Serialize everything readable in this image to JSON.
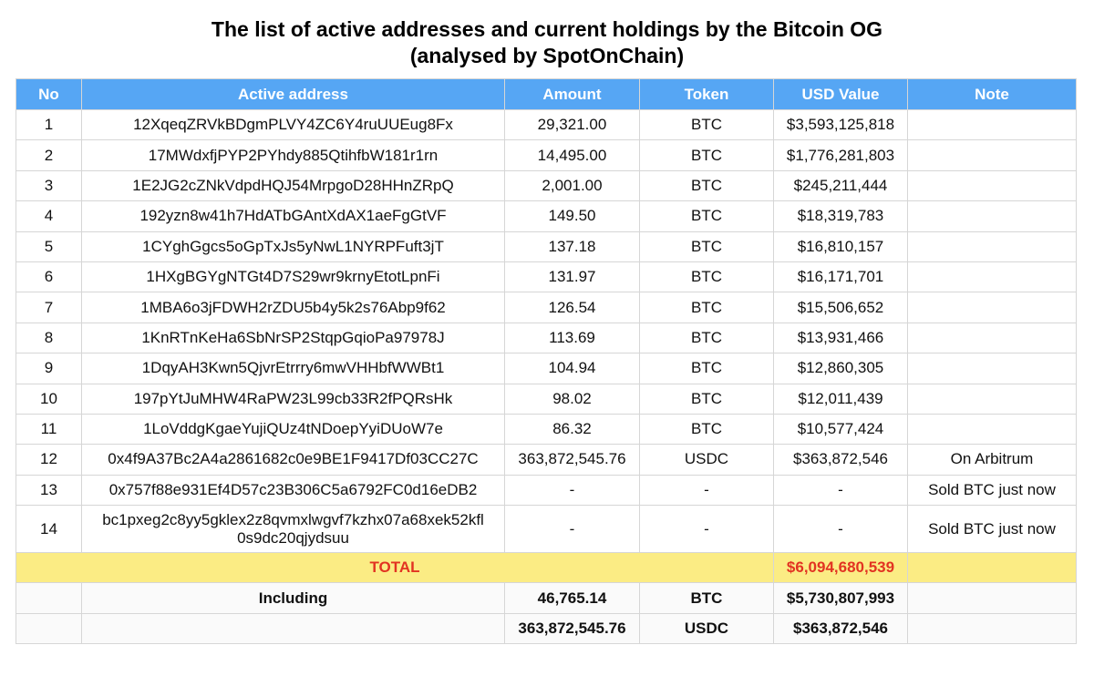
{
  "title": {
    "line1": "The list of active addresses and current holdings by the Bitcoin OG",
    "line2": "(analysed by SpotOnChain)"
  },
  "colors": {
    "header_bg": "#56a6f4",
    "header_text": "#ffffff",
    "total_bg": "#fbec84",
    "total_text": "#e23322"
  },
  "table": {
    "headers": {
      "no": "No",
      "address": "Active address",
      "amount": "Amount",
      "token": "Token",
      "usd": "USD Value",
      "note": "Note"
    },
    "rows": [
      {
        "no": "1",
        "address": "12XqeqZRVkBDgmPLVY4ZC6Y4ruUUEug8Fx",
        "amount": "29,321.00",
        "token": "BTC",
        "usd": "$3,593,125,818",
        "note": ""
      },
      {
        "no": "2",
        "address": "17MWdxfjPYP2PYhdy885QtihfbW181r1rn",
        "amount": "14,495.00",
        "token": "BTC",
        "usd": "$1,776,281,803",
        "note": ""
      },
      {
        "no": "3",
        "address": "1E2JG2cZNkVdpdHQJ54MrpgoD28HHnZRpQ",
        "amount": "2,001.00",
        "token": "BTC",
        "usd": "$245,211,444",
        "note": ""
      },
      {
        "no": "4",
        "address": "192yzn8w41h7HdATbGAntXdAX1aeFgGtVF",
        "amount": "149.50",
        "token": "BTC",
        "usd": "$18,319,783",
        "note": ""
      },
      {
        "no": "5",
        "address": "1CYghGgcs5oGpTxJs5yNwL1NYRPFuft3jT",
        "amount": "137.18",
        "token": "BTC",
        "usd": "$16,810,157",
        "note": ""
      },
      {
        "no": "6",
        "address": "1HXgBGYgNTGt4D7S29wr9krnyEtotLpnFi",
        "amount": "131.97",
        "token": "BTC",
        "usd": "$16,171,701",
        "note": ""
      },
      {
        "no": "7",
        "address": "1MBA6o3jFDWH2rZDU5b4y5k2s76Abp9f62",
        "amount": "126.54",
        "token": "BTC",
        "usd": "$15,506,652",
        "note": ""
      },
      {
        "no": "8",
        "address": "1KnRTnKeHa6SbNrSP2StqpGqioPa97978J",
        "amount": "113.69",
        "token": "BTC",
        "usd": "$13,931,466",
        "note": ""
      },
      {
        "no": "9",
        "address": "1DqyAH3Kwn5QjvrEtrrry6mwVHHbfWWBt1",
        "amount": "104.94",
        "token": "BTC",
        "usd": "$12,860,305",
        "note": ""
      },
      {
        "no": "10",
        "address": "197pYtJuMHW4RaPW23L99cb33R2fPQRsHk",
        "amount": "98.02",
        "token": "BTC",
        "usd": "$12,011,439",
        "note": ""
      },
      {
        "no": "11",
        "address": "1LoVddgKgaeYujiQUz4tNDoepYyiDUoW7e",
        "amount": "86.32",
        "token": "BTC",
        "usd": "$10,577,424",
        "note": ""
      },
      {
        "no": "12",
        "address": "0x4f9A37Bc2A4a2861682c0e9BE1F9417Df03CC27C",
        "amount": "363,872,545.76",
        "token": "USDC",
        "usd": "$363,872,546",
        "note": "On Arbitrum"
      },
      {
        "no": "13",
        "address": "0x757f88e931Ef4D57c23B306C5a6792FC0d16eDB2",
        "amount": "-",
        "token": "-",
        "usd": "-",
        "note": "Sold BTC just now"
      },
      {
        "no": "14",
        "address": "bc1pxeg2c8yy5gklex2z8qvmxlwgvf7kzhx07a68xek52kfl\n0s9dc20qjydsuu",
        "amount": "-",
        "token": "-",
        "usd": "-",
        "note": "Sold BTC just now"
      }
    ],
    "total": {
      "label": "TOTAL",
      "usd": "$6,094,680,539"
    },
    "including": [
      {
        "label": "Including",
        "amount": "46,765.14",
        "token": "BTC",
        "usd": "$5,730,807,993"
      },
      {
        "label": "",
        "amount": "363,872,545.76",
        "token": "USDC",
        "usd": "$363,872,546"
      }
    ]
  }
}
